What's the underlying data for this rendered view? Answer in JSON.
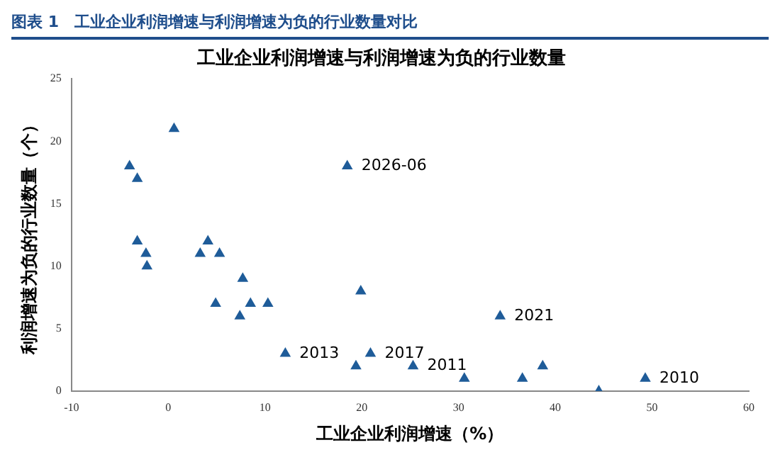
{
  "chart_data": {
    "type": "scatter",
    "title": "工业企业利润增速与利润增速为负的行业数量",
    "xlabel": "工业企业利润增速（%）",
    "ylabel": "利润增速为负的行业数量（个）",
    "annotations": [
      "图表 1　工业企业利润增速与利润增速为负的行业数量对比",
      {
        "text": "2026-06",
        "x": 18.5,
        "y": 18
      },
      {
        "text": "2013",
        "x": 12.1,
        "y": 3
      },
      {
        "text": "2017",
        "x": 20.9,
        "y": 3
      },
      {
        "text": "2011",
        "x": 25.3,
        "y": 2
      },
      {
        "text": "2021",
        "x": 34.3,
        "y": 6
      },
      {
        "text": "2010",
        "x": 49.3,
        "y": 1
      }
    ],
    "x": [
      0.6,
      -4.0,
      -3.2,
      -3.2,
      -2.3,
      -2.2,
      3.3,
      4.1,
      5.3,
      4.9,
      7.7,
      7.4,
      8.5,
      10.3,
      12.1,
      18.5,
      19.9,
      19.4,
      20.9,
      25.3,
      30.6,
      34.3,
      36.6,
      38.7,
      44.5,
      49.3
    ],
    "values": [
      21,
      18,
      17,
      12,
      11,
      10,
      11,
      12,
      11,
      7,
      9,
      6,
      7,
      7,
      3,
      18,
      8,
      2,
      3,
      2,
      1,
      6,
      1,
      2,
      0,
      1
    ],
    "color": "#1f5c99",
    "marker": "triangle",
    "xlim": [
      -10,
      60
    ],
    "xticks": [
      -10,
      0,
      10,
      20,
      30,
      40,
      50,
      60
    ],
    "ylim": [
      0,
      25
    ],
    "yticks": [
      0,
      5,
      10,
      15,
      20,
      25
    ],
    "grid": false,
    "legend": false
  }
}
